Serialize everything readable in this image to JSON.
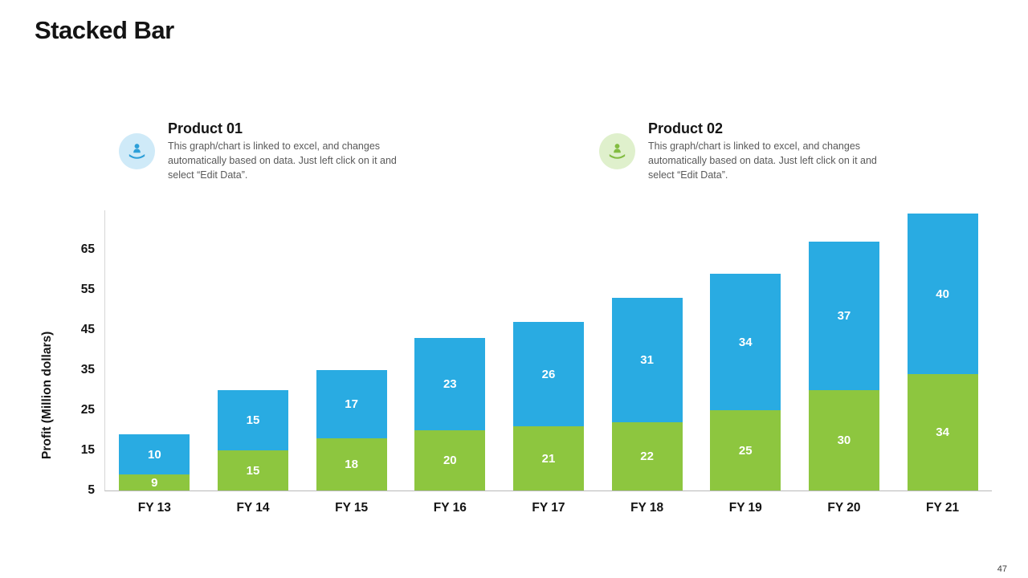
{
  "page": {
    "title": "Stacked Bar",
    "page_number": "47"
  },
  "legend": [
    {
      "heading": "Product 01",
      "description": "This graph/chart is linked to excel, and changes automatically based on data. Just left click on it and select “Edit Data”.",
      "icon": "hand-presenting-icon",
      "icon_bg": "#cfeaf8",
      "icon_color": "#2d9fd8"
    },
    {
      "heading": "Product 02",
      "description": "This graph/chart is linked to excel, and changes automatically based on data. Just left click on it and select “Edit Data”.",
      "icon": "hand-presenting-icon",
      "icon_bg": "#dff0cc",
      "icon_color": "#82bc41"
    }
  ],
  "chart_data": {
    "type": "bar",
    "stacked": true,
    "title": "Stacked Bar",
    "xlabel": "",
    "ylabel": "Profit (Million dollars)",
    "categories": [
      "FY 13",
      "FY 14",
      "FY 15",
      "FY 16",
      "FY 17",
      "FY 18",
      "FY 19",
      "FY 20",
      "FY 21"
    ],
    "series": [
      {
        "name": "Product 02",
        "stack": "bottom",
        "color": "#8dc63f",
        "values": [
          9,
          15,
          18,
          20,
          21,
          22,
          25,
          30,
          34
        ]
      },
      {
        "name": "Product 01",
        "stack": "top",
        "color": "#29abe2",
        "values": [
          10,
          15,
          17,
          23,
          26,
          31,
          34,
          37,
          40
        ]
      }
    ],
    "yticks": [
      5,
      15,
      25,
      35,
      45,
      55,
      65
    ],
    "axis_min": 5,
    "grid": false,
    "legend_position": "top"
  }
}
